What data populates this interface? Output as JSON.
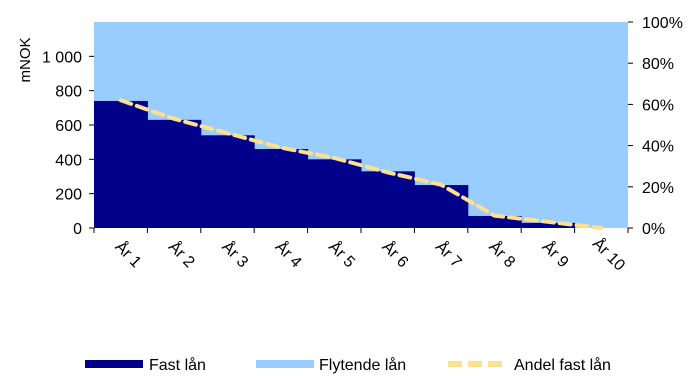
{
  "chart_data": {
    "type": "area",
    "categories": [
      "År 1",
      "År 2",
      "År 3",
      "År 4",
      "År 5",
      "År 6",
      "År 7",
      "År 8",
      "År 9",
      "År 10"
    ],
    "ylabel": "mNOK",
    "ylim": [
      0,
      1200
    ],
    "y_ticks": [
      "0",
      "200",
      "400",
      "600",
      "800",
      "1 000"
    ],
    "y2lim": [
      0,
      100
    ],
    "y2_ticks": [
      "0%",
      "20%",
      "40%",
      "60%",
      "80%",
      "100%"
    ],
    "grid": false,
    "legend_position": "bottom",
    "series": [
      {
        "name": "Fast lån",
        "kind": "step-area",
        "axis": "left",
        "color": "#00008B",
        "values": [
          740,
          630,
          540,
          460,
          400,
          330,
          250,
          70,
          30,
          0
        ]
      },
      {
        "name": "Flytende lån",
        "kind": "fill",
        "axis": "left",
        "color": "#99CCFF",
        "values": [
          460,
          570,
          660,
          740,
          800,
          870,
          950,
          1130,
          1170,
          1200
        ]
      },
      {
        "name": "Andel fast lån",
        "kind": "dashed-line",
        "axis": "right",
        "color": "#FFE08C",
        "values": [
          62,
          53,
          46,
          39,
          34,
          27,
          21,
          6,
          3,
          0
        ]
      }
    ]
  }
}
